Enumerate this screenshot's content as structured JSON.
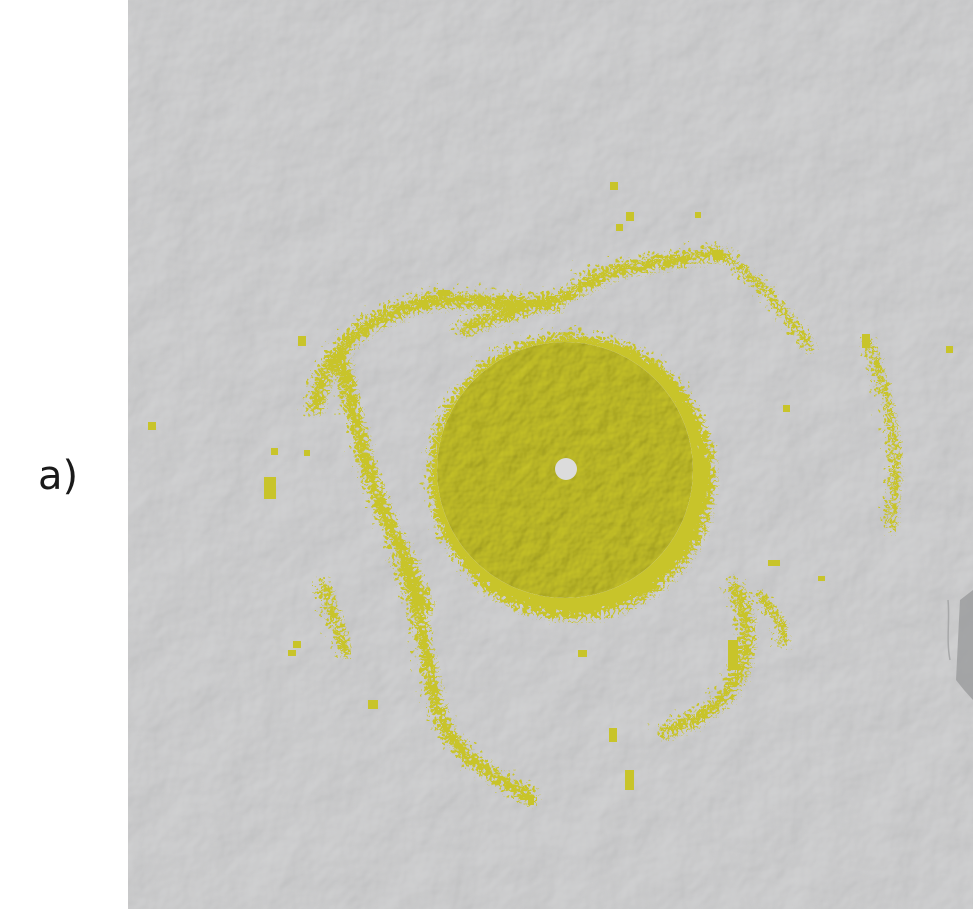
{
  "figure": {
    "panel_label": "a)"
  },
  "map": {
    "terrain_color": "#c3c4c5",
    "overlay_color": "#c8c42a",
    "overlay_edge_color": "#b3ae1c",
    "center_marker_color": "#dcdcdc"
  }
}
